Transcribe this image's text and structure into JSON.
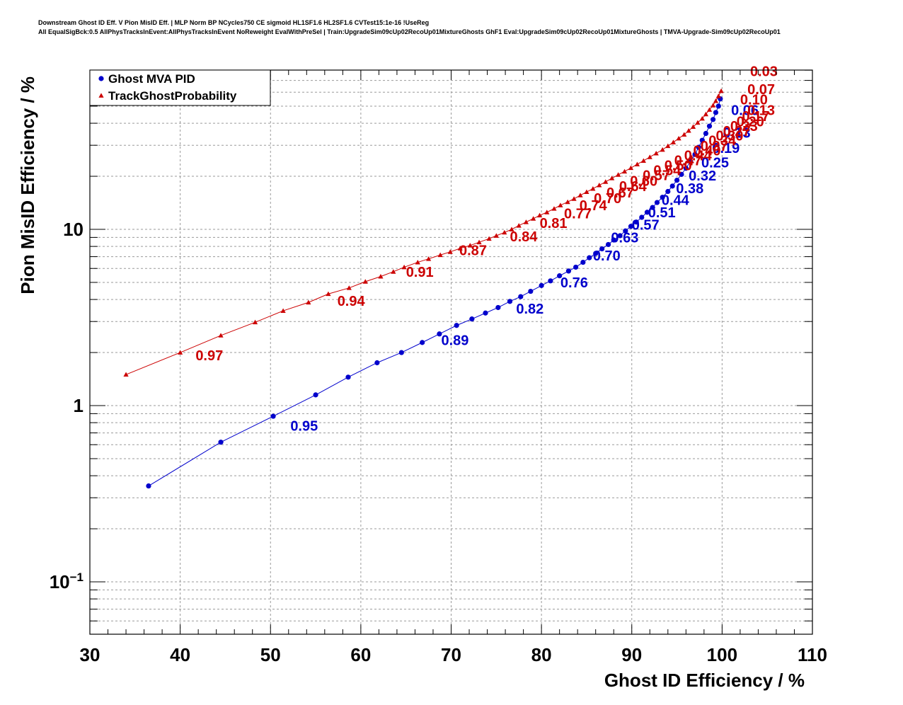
{
  "header": {
    "title_line1": "Downstream Ghost ID Eff. V Pion MisID Eff. | MLP Norm BP NCycles750 CE sigmoid HL1SF1.6 HL2SF1.6 CVTest15:1e-16 !UseReg",
    "title_line2": "All EqualSigBck:0.5 AllPhysTracksInEvent:AllPhysTracksInEvent NoReweight EvalWithPreSel | Train:UpgradeSim09cUp02RecoUp01MixtureGhosts GhF1 Eval:UpgradeSim09cUp02RecoUp01MixtureGhosts | TMVA-Upgrade-Sim09cUp02RecoUp01"
  },
  "colors": {
    "ghost_mva": "#0000cc",
    "track_ghost": "#cc0000",
    "axis": "#000000",
    "grid": "#9a9a9a"
  },
  "chart_data": {
    "type": "scatter",
    "xlabel": "Ghost ID Efficiency / %",
    "ylabel": "Pion MisID Efficiency / %",
    "xlim": [
      30,
      110
    ],
    "ylim": [
      0.055,
      70
    ],
    "yscale": "log",
    "grid": true,
    "legend_position": "top-left",
    "x_ticks": [
      "30",
      "40",
      "50",
      "60",
      "70",
      "80",
      "90",
      "100",
      "110"
    ],
    "y_ticks": [
      {
        "value": 10,
        "base": "10",
        "exp": ""
      },
      {
        "value": 1,
        "base": "1",
        "exp": ""
      },
      {
        "value": 0.1,
        "base": "10",
        "exp": "−1"
      }
    ],
    "series": [
      {
        "name": "Ghost MVA PID",
        "marker": "circle",
        "color": "#0000cc",
        "points": [
          [
            36.5,
            0.35
          ],
          [
            44.5,
            0.62
          ],
          [
            50.3,
            0.87
          ],
          [
            55.0,
            1.15
          ],
          [
            58.6,
            1.45
          ],
          [
            61.8,
            1.75
          ],
          [
            64.5,
            2.0
          ],
          [
            66.8,
            2.28
          ],
          [
            68.7,
            2.55
          ],
          [
            70.6,
            2.85
          ],
          [
            72.3,
            3.1
          ],
          [
            73.8,
            3.35
          ],
          [
            75.2,
            3.6
          ],
          [
            76.5,
            3.9
          ],
          [
            77.7,
            4.15
          ],
          [
            78.8,
            4.45
          ],
          [
            80.0,
            4.8
          ],
          [
            81.0,
            5.1
          ],
          [
            82.0,
            5.45
          ],
          [
            83.0,
            5.8
          ],
          [
            83.8,
            6.1
          ],
          [
            84.6,
            6.5
          ],
          [
            85.3,
            6.9
          ],
          [
            86.0,
            7.3
          ],
          [
            86.7,
            7.75
          ],
          [
            87.4,
            8.2
          ],
          [
            88.0,
            8.7
          ],
          [
            88.7,
            9.2
          ],
          [
            89.3,
            9.8
          ],
          [
            89.9,
            10.4
          ],
          [
            90.5,
            11.0
          ],
          [
            91.1,
            11.7
          ],
          [
            91.7,
            12.5
          ],
          [
            92.3,
            13.3
          ],
          [
            92.8,
            14.2
          ],
          [
            93.4,
            15.2
          ],
          [
            94.0,
            16.4
          ],
          [
            94.5,
            17.6
          ],
          [
            95.0,
            19.0
          ],
          [
            95.5,
            20.5
          ],
          [
            96.0,
            22.2
          ],
          [
            96.5,
            24.3
          ],
          [
            97.0,
            26.6
          ],
          [
            97.4,
            29.2
          ],
          [
            97.8,
            32.0
          ],
          [
            98.2,
            35.0
          ],
          [
            98.6,
            38.5
          ],
          [
            99.0,
            42.0
          ],
          [
            99.3,
            46.0
          ],
          [
            99.6,
            50.0
          ],
          [
            99.8,
            55.0
          ]
        ],
        "labels": [
          {
            "text": "0.95",
            "x": 52.2,
            "y": 0.77
          },
          {
            "text": "0.89",
            "x": 68.9,
            "y": 2.35
          },
          {
            "text": "0.82",
            "x": 77.2,
            "y": 3.55
          },
          {
            "text": "0.76",
            "x": 82.1,
            "y": 5.0
          },
          {
            "text": "0.70",
            "x": 85.7,
            "y": 7.1
          },
          {
            "text": "0.63",
            "x": 87.7,
            "y": 9.0
          },
          {
            "text": "0.57",
            "x": 90.0,
            "y": 10.6
          },
          {
            "text": "0.51",
            "x": 91.8,
            "y": 12.5
          },
          {
            "text": "0.44",
            "x": 93.3,
            "y": 14.7
          },
          {
            "text": "0.38",
            "x": 94.9,
            "y": 17.1
          },
          {
            "text": "0.32",
            "x": 96.3,
            "y": 20.2
          },
          {
            "text": "0.25",
            "x": 97.7,
            "y": 24.0
          },
          {
            "text": "0.19",
            "x": 98.9,
            "y": 29.0
          },
          {
            "text": "0.13",
            "x": 100.1,
            "y": 35.3
          },
          {
            "text": "0.06",
            "x": 101.0,
            "y": 47.5
          }
        ]
      },
      {
        "name": "TrackGhostProbability",
        "marker": "triangle",
        "color": "#cc0000",
        "points": [
          [
            34.0,
            1.5
          ],
          [
            40.0,
            2.0
          ],
          [
            44.5,
            2.5
          ],
          [
            48.3,
            2.97
          ],
          [
            51.4,
            3.45
          ],
          [
            54.2,
            3.85
          ],
          [
            56.4,
            4.3
          ],
          [
            58.7,
            4.65
          ],
          [
            60.5,
            5.05
          ],
          [
            62.2,
            5.4
          ],
          [
            63.6,
            5.75
          ],
          [
            64.8,
            6.1
          ],
          [
            66.3,
            6.5
          ],
          [
            67.5,
            6.8
          ],
          [
            68.8,
            7.15
          ],
          [
            69.9,
            7.45
          ],
          [
            71.0,
            7.8
          ],
          [
            72.1,
            8.1
          ],
          [
            73.1,
            8.45
          ],
          [
            74.2,
            8.85
          ],
          [
            75.0,
            9.2
          ],
          [
            75.9,
            9.6
          ],
          [
            76.7,
            10.0
          ],
          [
            77.5,
            10.5
          ],
          [
            78.3,
            11.0
          ],
          [
            79.1,
            11.5
          ],
          [
            79.8,
            12.0
          ],
          [
            80.6,
            12.5
          ],
          [
            81.4,
            13.1
          ],
          [
            82.1,
            13.7
          ],
          [
            82.9,
            14.3
          ],
          [
            83.6,
            14.9
          ],
          [
            84.3,
            15.6
          ],
          [
            85.0,
            16.3
          ],
          [
            85.7,
            17.0
          ],
          [
            86.4,
            17.8
          ],
          [
            87.1,
            18.6
          ],
          [
            87.8,
            19.5
          ],
          [
            88.5,
            20.4
          ],
          [
            89.2,
            21.3
          ],
          [
            89.9,
            22.3
          ],
          [
            90.6,
            23.4
          ],
          [
            91.3,
            24.5
          ],
          [
            92.0,
            25.7
          ],
          [
            92.7,
            27.0
          ],
          [
            93.4,
            28.3
          ],
          [
            94.0,
            29.7
          ],
          [
            94.6,
            31.2
          ],
          [
            95.2,
            32.8
          ],
          [
            95.8,
            34.5
          ],
          [
            96.3,
            36.3
          ],
          [
            96.8,
            38.2
          ],
          [
            97.3,
            40.3
          ],
          [
            97.8,
            42.5
          ],
          [
            98.2,
            45.0
          ],
          [
            98.6,
            47.7
          ],
          [
            99.0,
            50.5
          ],
          [
            99.3,
            53.5
          ],
          [
            99.6,
            57.0
          ],
          [
            99.9,
            61.0
          ]
        ],
        "labels": [
          {
            "text": "0.97",
            "x": 41.7,
            "y": 1.93
          },
          {
            "text": "0.94",
            "x": 57.4,
            "y": 3.93
          },
          {
            "text": "0.91",
            "x": 65.0,
            "y": 5.75
          },
          {
            "text": "0.87",
            "x": 70.9,
            "y": 7.6
          },
          {
            "text": "0.84",
            "x": 76.5,
            "y": 9.1
          },
          {
            "text": "0.81",
            "x": 79.8,
            "y": 10.85
          },
          {
            "text": "0.77",
            "x": 82.5,
            "y": 12.3
          },
          {
            "text": "0.74",
            "x": 84.2,
            "y": 13.7
          },
          {
            "text": "0.70",
            "x": 85.8,
            "y": 15.0
          },
          {
            "text": "0.67",
            "x": 87.2,
            "y": 16.2
          },
          {
            "text": "0.64",
            "x": 88.6,
            "y": 17.6
          },
          {
            "text": "0.60",
            "x": 89.8,
            "y": 18.8
          },
          {
            "text": "0.57",
            "x": 91.2,
            "y": 20.3
          },
          {
            "text": "0.54",
            "x": 92.4,
            "y": 21.6
          },
          {
            "text": "0.50",
            "x": 93.6,
            "y": 23.1
          },
          {
            "text": "0.47",
            "x": 94.7,
            "y": 24.6
          },
          {
            "text": "0.44",
            "x": 95.8,
            "y": 26.3
          },
          {
            "text": "0.40",
            "x": 96.8,
            "y": 28.0
          },
          {
            "text": "0.37",
            "x": 97.6,
            "y": 29.8
          },
          {
            "text": "0.34",
            "x": 98.5,
            "y": 31.9
          },
          {
            "text": "0.30",
            "x": 99.3,
            "y": 34.0
          },
          {
            "text": "0.27",
            "x": 100.1,
            "y": 36.2
          },
          {
            "text": "0.23",
            "x": 100.9,
            "y": 38.5
          },
          {
            "text": "0.20",
            "x": 101.6,
            "y": 41.0
          },
          {
            "text": "0.17",
            "x": 102.2,
            "y": 44.0
          },
          {
            "text": "0.13",
            "x": 102.8,
            "y": 47.5
          },
          {
            "text": "0.10",
            "x": 102.0,
            "y": 54.5
          },
          {
            "text": "0.07",
            "x": 102.8,
            "y": 62.5
          },
          {
            "text": "0.03",
            "x": 103.1,
            "y": 79.0
          }
        ]
      }
    ]
  }
}
